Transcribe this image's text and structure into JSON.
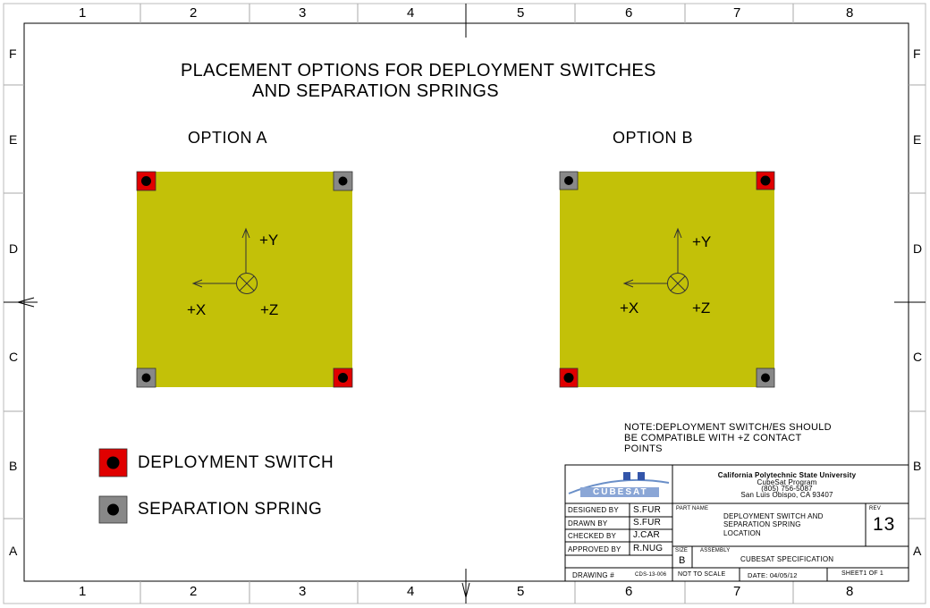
{
  "grid": {
    "columns": [
      "1",
      "2",
      "3",
      "4",
      "5",
      "6",
      "7",
      "8"
    ],
    "rows": [
      "F",
      "E",
      "D",
      "C",
      "B",
      "A"
    ]
  },
  "title": {
    "line1": "PLACEMENT OPTIONS FOR DEPLOYMENT SWITCHES",
    "line2": "AND SEPARATION SPRINGS"
  },
  "options": [
    {
      "label": "OPTION A",
      "deployment_switch_corners": [
        "top-left",
        "bottom-right"
      ],
      "separation_spring_corners": [
        "top-right",
        "bottom-left"
      ]
    },
    {
      "label": "OPTION B",
      "deployment_switch_corners": [
        "top-right",
        "bottom-left"
      ],
      "separation_spring_corners": [
        "top-left",
        "bottom-right"
      ]
    }
  ],
  "axes": {
    "y": "+Y",
    "x": "+X",
    "z": "+Z"
  },
  "legend": {
    "deployment_switch": "DEPLOYMENT SWITCH",
    "separation_spring": "SEPARATION SPRING"
  },
  "note": [
    "NOTE:DEPLOYMENT SWITCH/ES SHOULD",
    "BE COMPATIBLE WITH +Z CONTACT",
    "POINTS"
  ],
  "colors": {
    "panel": "#c3c108",
    "switch": "#e00000",
    "spring": "#888888",
    "contact": "#000000"
  },
  "title_block": {
    "logo": "CUBESAT",
    "institution": [
      "California Polytechnic State University",
      "CubeSat Program",
      "(805) 756-5087",
      "San Luis Obispo, CA 93407"
    ],
    "designed_by_label": "DESIGNED BY",
    "designed_by": "S.FUR",
    "drawn_by_label": "DRAWN BY",
    "drawn_by": "S.FUR",
    "checked_by_label": "CHECKED BY",
    "checked_by": "J.CAR",
    "approved_by_label": "APPROVED BY",
    "approved_by": "R.NUG",
    "part_name_label": "PART NAME",
    "part_name": [
      "DEPLOYMENT SWITCH AND",
      "SEPARATION SPRING",
      "LOCATION"
    ],
    "rev_label": "REV",
    "rev": "13",
    "size_label": "SIZE",
    "size": "B",
    "assembly_label": "ASSEMBLY",
    "assembly": "CUBESAT SPECIFICATION",
    "drawing_label": "DRAWING #",
    "drawing_number": "CDS-13-006",
    "scale": "NOT TO SCALE",
    "date": "DATE: 04/05/12",
    "sheet": "SHEET1 OF 1"
  }
}
